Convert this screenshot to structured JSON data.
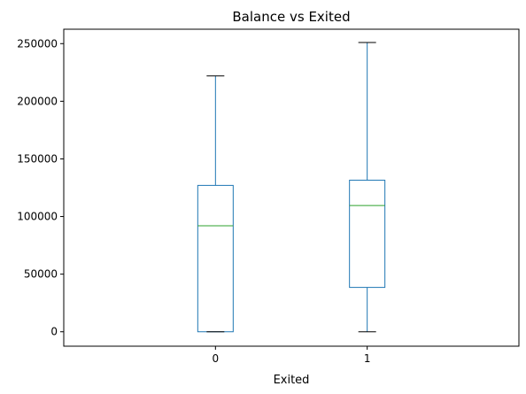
{
  "chart_data": {
    "type": "box",
    "title": "Balance vs Exited",
    "xlabel": "Exited",
    "ylabel": "",
    "categories": [
      "0",
      "1"
    ],
    "ylim": [
      -12500,
      262500
    ],
    "yticks": [
      0,
      50000,
      100000,
      150000,
      200000,
      250000
    ],
    "ytick_labels": [
      "0",
      "50000",
      "100000",
      "150000",
      "200000",
      "250000"
    ],
    "boxes": [
      {
        "category": "0",
        "whisker_low": 0,
        "q1": 0,
        "median": 92000,
        "q3": 127000,
        "whisker_high": 222000
      },
      {
        "category": "1",
        "whisker_low": 0,
        "q1": 38500,
        "median": 109500,
        "q3": 131500,
        "whisker_high": 251000
      }
    ],
    "grid": false,
    "colors": {
      "box": "#1f77b4",
      "median": "#2ca02c",
      "cap": "#000000",
      "axis": "#000000"
    }
  }
}
